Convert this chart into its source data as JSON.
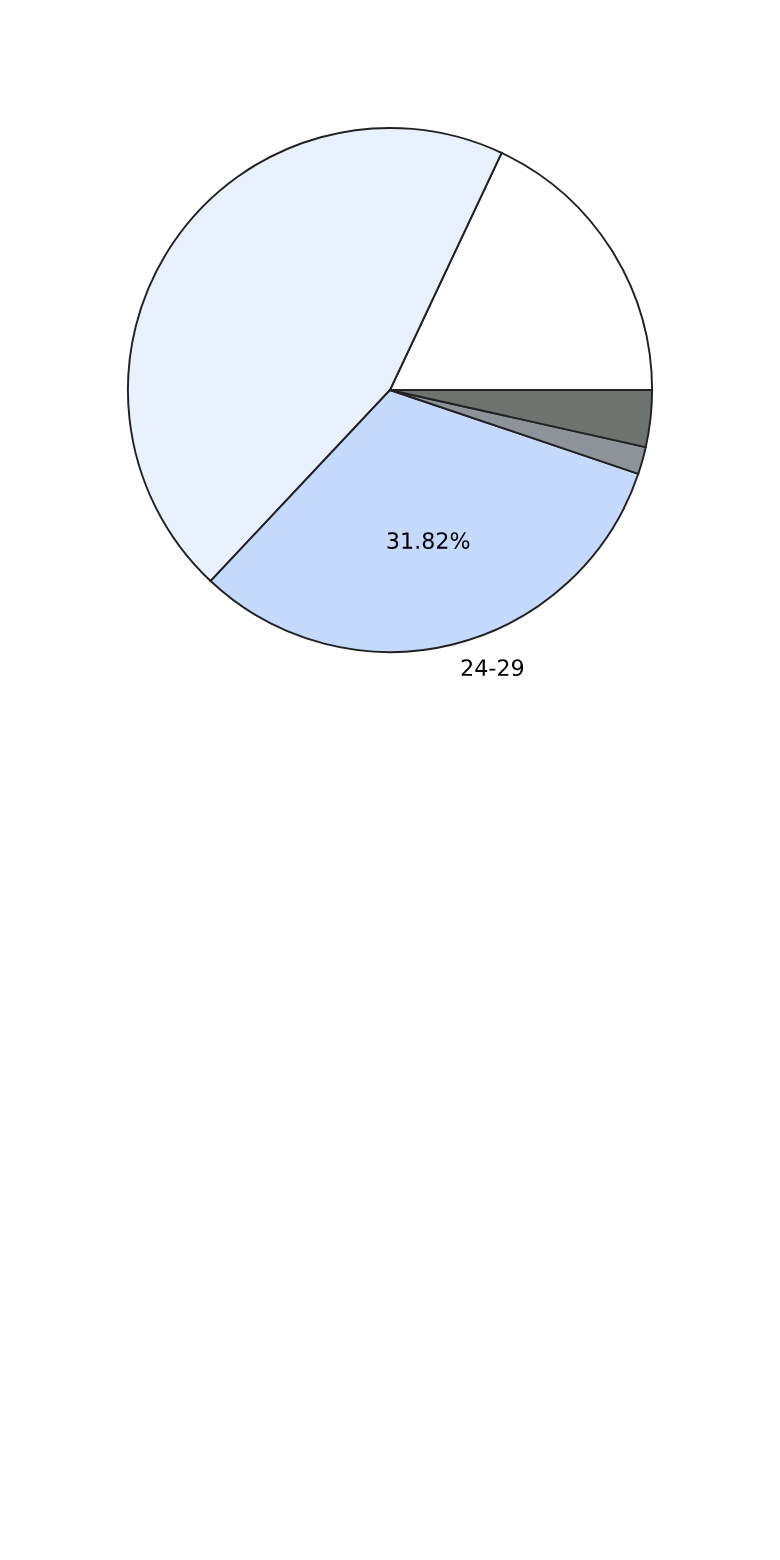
{
  "chart_data": {
    "type": "pie",
    "categories": [
      null,
      null,
      "24-29",
      null,
      null
    ],
    "values": [
      18,
      45,
      31.82,
      1.68,
      3.5
    ],
    "colors": [
      "#ffffff",
      "#eaf1fe",
      "#c5d9fd",
      "#8e939a",
      "#6e7370"
    ],
    "value_labels": [
      null,
      null,
      "31.82%",
      null,
      null
    ],
    "legend": false
  }
}
